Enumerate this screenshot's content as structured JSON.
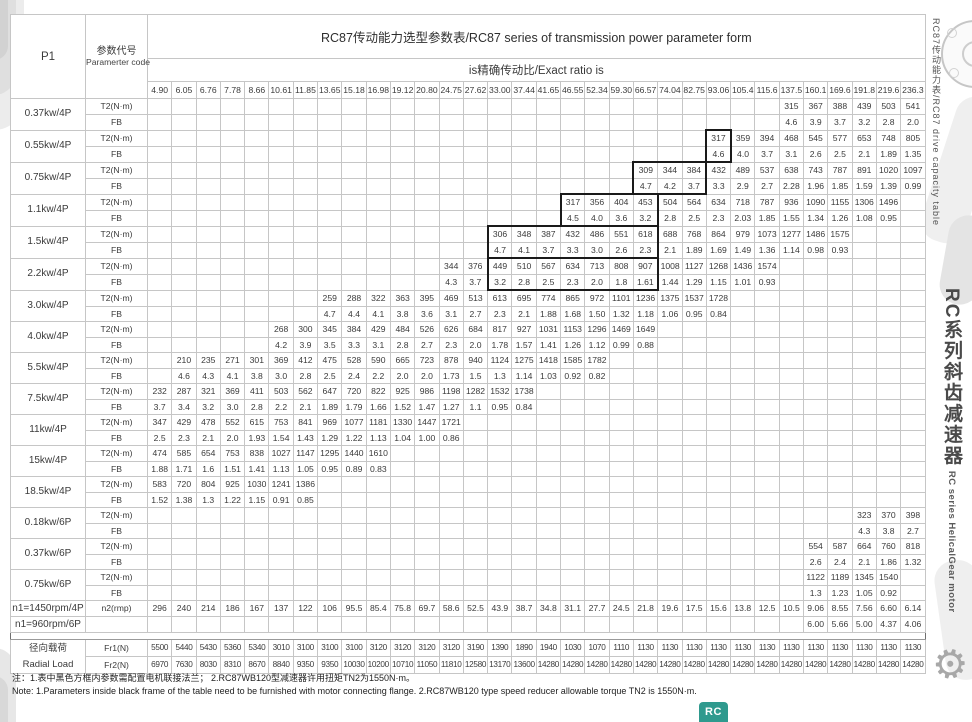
{
  "header": {
    "p1": "P1",
    "param_cn": "参数代号",
    "param_en": "Paramerter code",
    "title": "RC87传动能力选型参数表/RC87 series of transmission power parameter form",
    "subtitle": "is精确传动比/Exact ratio is"
  },
  "ratios": [
    "4.90",
    "6.05",
    "6.76",
    "7.78",
    "8.66",
    "10.61",
    "11.85",
    "13.65",
    "15.18",
    "16.98",
    "19.12",
    "20.80",
    "24.75",
    "27.62",
    "33.00",
    "37.44",
    "41.65",
    "46.55",
    "52.34",
    "59.30",
    "66.57",
    "74.04",
    "82.75",
    "93.06",
    "105.4",
    "115.6",
    "137.5",
    "160.1",
    "169.6",
    "191.8",
    "219.6",
    "236.3"
  ],
  "labels": {
    "t2": "T2(N·m)",
    "fb": "FB",
    "n2": "n2(rmp)",
    "fr1": "Fr1(N)",
    "fr2": "Fr2(N)"
  },
  "power_rows": [
    {
      "p1": "0.37kw/4P",
      "start": 26,
      "t2": [
        "315",
        "367",
        "388",
        "439",
        "503",
        "541"
      ],
      "fb": [
        "4.6",
        "3.9",
        "3.7",
        "3.2",
        "2.8",
        "2.0"
      ]
    },
    {
      "p1": "0.55kw/4P",
      "start": 23,
      "boxed": [
        23,
        23
      ],
      "t2": [
        "317",
        "359",
        "394",
        "468",
        "545",
        "577",
        "653",
        "748",
        "805"
      ],
      "fb": [
        "4.6",
        "4.0",
        "3.7",
        "3.1",
        "2.6",
        "2.5",
        "2.1",
        "1.89",
        "1.35"
      ]
    },
    {
      "p1": "0.75kw/4P",
      "start": 20,
      "boxed": [
        20,
        22
      ],
      "t2": [
        "309",
        "344",
        "384",
        "432",
        "489",
        "537",
        "638",
        "743",
        "787",
        "891",
        "1020",
        "1097"
      ],
      "fb": [
        "4.7",
        "4.2",
        "3.7",
        "3.3",
        "2.9",
        "2.7",
        "2.28",
        "1.96",
        "1.85",
        "1.59",
        "1.39",
        "0.99"
      ]
    },
    {
      "p1": "1.1kw/4P",
      "start": 17,
      "boxed": [
        17,
        20
      ],
      "t2": [
        "317",
        "356",
        "404",
        "453",
        "504",
        "564",
        "634",
        "718",
        "787",
        "936",
        "1090",
        "1155",
        "1306",
        "1496"
      ],
      "fb": [
        "4.5",
        "4.0",
        "3.6",
        "3.2",
        "2.8",
        "2.5",
        "2.3",
        "2.03",
        "1.85",
        "1.55",
        "1.34",
        "1.26",
        "1.08",
        "0.95"
      ]
    },
    {
      "p1": "1.5kw/4P",
      "start": 14,
      "boxed": [
        14,
        20
      ],
      "t2": [
        "306",
        "348",
        "387",
        "432",
        "486",
        "551",
        "618",
        "688",
        "768",
        "864",
        "979",
        "1073",
        "1277",
        "1486",
        "1575"
      ],
      "fb": [
        "4.7",
        "4.1",
        "3.7",
        "3.3",
        "3.0",
        "2.6",
        "2.3",
        "2.1",
        "1.89",
        "1.69",
        "1.49",
        "1.36",
        "1.14",
        "0.98",
        "0.93"
      ]
    },
    {
      "p1": "2.2kw/4P",
      "start": 12,
      "boxed": [
        14,
        20
      ],
      "t2": [
        "344",
        "376",
        "449",
        "510",
        "567",
        "634",
        "713",
        "808",
        "907",
        "1008",
        "1127",
        "1268",
        "1436",
        "1574"
      ],
      "fb": [
        "4.3",
        "3.7",
        "3.2",
        "2.8",
        "2.5",
        "2.3",
        "2.0",
        "1.8",
        "1.61",
        "1.44",
        "1.29",
        "1.15",
        "1.01",
        "0.93"
      ]
    },
    {
      "p1": "3.0kw/4P",
      "start": 7,
      "t2": [
        "259",
        "288",
        "322",
        "363",
        "395",
        "469",
        "513",
        "613",
        "695",
        "774",
        "865",
        "972",
        "1101",
        "1236",
        "1375",
        "1537",
        "1728"
      ],
      "fb": [
        "4.7",
        "4.4",
        "4.1",
        "3.8",
        "3.6",
        "3.1",
        "2.7",
        "2.3",
        "2.1",
        "1.88",
        "1.68",
        "1.50",
        "1.32",
        "1.18",
        "1.06",
        "0.95",
        "0.84"
      ]
    },
    {
      "p1": "4.0kw/4P",
      "start": 5,
      "t2": [
        "268",
        "300",
        "345",
        "384",
        "429",
        "484",
        "526",
        "626",
        "684",
        "817",
        "927",
        "1031",
        "1153",
        "1296",
        "1469",
        "1649"
      ],
      "fb": [
        "4.2",
        "3.9",
        "3.5",
        "3.3",
        "3.1",
        "2.8",
        "2.7",
        "2.3",
        "2.0",
        "1.78",
        "1.57",
        "1.41",
        "1.26",
        "1.12",
        "0.99",
        "0.88"
      ]
    },
    {
      "p1": "5.5kw/4P",
      "start": 1,
      "t2": [
        "210",
        "235",
        "271",
        "301",
        "369",
        "412",
        "475",
        "528",
        "590",
        "665",
        "723",
        "878",
        "940",
        "1124",
        "1275",
        "1418",
        "1585",
        "1782"
      ],
      "fb": [
        "4.6",
        "4.3",
        "4.1",
        "3.8",
        "3.0",
        "2.8",
        "2.5",
        "2.4",
        "2.2",
        "2.0",
        "2.0",
        "1.73",
        "1.5",
        "1.3",
        "1.14",
        "1.03",
        "0.92",
        "0.82"
      ]
    },
    {
      "p1": "7.5kw/4P",
      "start": 0,
      "t2": [
        "232",
        "287",
        "321",
        "369",
        "411",
        "503",
        "562",
        "647",
        "720",
        "822",
        "925",
        "986",
        "1198",
        "1282",
        "1532",
        "1738"
      ],
      "fb": [
        "3.7",
        "3.4",
        "3.2",
        "3.0",
        "2.8",
        "2.2",
        "2.1",
        "1.89",
        "1.79",
        "1.66",
        "1.52",
        "1.47",
        "1.27",
        "1.1",
        "0.95",
        "0.84"
      ]
    },
    {
      "p1": "11kw/4P",
      "start": 0,
      "t2": [
        "347",
        "429",
        "478",
        "552",
        "615",
        "753",
        "841",
        "969",
        "1077",
        "1181",
        "1330",
        "1447",
        "1721"
      ],
      "fb": [
        "2.5",
        "2.3",
        "2.1",
        "2.0",
        "1.93",
        "1.54",
        "1.43",
        "1.29",
        "1.22",
        "1.13",
        "1.04",
        "1.00",
        "0.86"
      ]
    },
    {
      "p1": "15kw/4P",
      "start": 0,
      "t2": [
        "474",
        "585",
        "654",
        "753",
        "838",
        "1027",
        "1147",
        "1295",
        "1440",
        "1610"
      ],
      "fb": [
        "1.88",
        "1.71",
        "1.6",
        "1.51",
        "1.41",
        "1.13",
        "1.05",
        "0.95",
        "0.89",
        "0.83"
      ]
    },
    {
      "p1": "18.5kw/4P",
      "start": 0,
      "t2": [
        "583",
        "720",
        "804",
        "925",
        "1030",
        "1241",
        "1386"
      ],
      "fb": [
        "1.52",
        "1.38",
        "1.3",
        "1.22",
        "1.15",
        "0.91",
        "0.85"
      ]
    },
    {
      "p1": "0.18kw/6P",
      "start": 29,
      "t2": [
        "323",
        "370",
        "398"
      ],
      "fb": [
        "4.3",
        "3.8",
        "2.7"
      ]
    },
    {
      "p1": "0.37kw/6P",
      "start": 27,
      "t2": [
        "554",
        "587",
        "664",
        "760",
        "818"
      ],
      "fb": [
        "2.6",
        "2.4",
        "2.1",
        "1.86",
        "1.32"
      ]
    },
    {
      "p1": "0.75kw/6P",
      "start": 27,
      "t2": [
        "1122",
        "1189",
        "1345",
        "1540"
      ],
      "fb": [
        "1.3",
        "1.23",
        "1.05",
        "0.92"
      ]
    }
  ],
  "speed_rows": [
    {
      "p1": "n1=1450rpm/4P",
      "param": "n2(rmp)",
      "start": 0,
      "values": [
        "296",
        "240",
        "214",
        "186",
        "167",
        "137",
        "122",
        "106",
        "95.5",
        "85.4",
        "75.8",
        "69.7",
        "58.6",
        "52.5",
        "43.9",
        "38.7",
        "34.8",
        "31.1",
        "27.7",
        "24.5",
        "21.8",
        "19.6",
        "17.5",
        "15.6",
        "13.8",
        "12.5",
        "10.5",
        "9.06",
        "8.55",
        "7.56",
        "6.60",
        "6.14"
      ]
    },
    {
      "p1": "n1=960rpm/6P",
      "param": "",
      "start": 27,
      "values": [
        "6.00",
        "5.66",
        "5.00",
        "4.37",
        "4.06"
      ]
    }
  ],
  "radial": {
    "label_cn": "径向载荷",
    "label_en": "Radial Load",
    "rows": [
      {
        "param": "Fr1(N)",
        "values": [
          "5500",
          "5440",
          "5430",
          "5360",
          "5340",
          "3010",
          "3100",
          "3100",
          "3100",
          "3120",
          "3120",
          "3120",
          "3120",
          "3190",
          "1390",
          "1890",
          "1940",
          "1030",
          "1070",
          "1110",
          "1130",
          "1130",
          "1130",
          "1130",
          "1130",
          "1130",
          "1130",
          "1130",
          "1130",
          "1130",
          "1130",
          "1130"
        ]
      },
      {
        "param": "Fr2(N)",
        "values": [
          "6970",
          "7630",
          "8030",
          "8310",
          "8670",
          "8840",
          "9350",
          "9350",
          "10030",
          "10200",
          "10710",
          "11050",
          "11810",
          "12580",
          "13170",
          "13600",
          "14280",
          "14280",
          "14280",
          "14280",
          "14280",
          "14280",
          "14280",
          "14280",
          "14280",
          "14280",
          "14280",
          "14280",
          "14280",
          "14280",
          "14280",
          "14280"
        ]
      }
    ]
  },
  "notes": {
    "cn": "注：1.表中黑色方框内参数需配置电机联接法兰；    2.RC87WB120型减速器许用扭矩TN2为1550N·m。",
    "en": "Note: 1.Parameters inside black frame of the table need to be furnished with motor connecting flange.    2.RC87WB120 type speed reducer allowable torque TN2 is 1550N·m."
  },
  "side": {
    "top_label": "RC87传动能力表/RC87 drive capacity table",
    "series_cn": "RC系列斜齿减速器",
    "series_en": "RC series HelicalGear motor",
    "badge": "RC"
  },
  "colors": {
    "badge_teal": "#2f9a8e",
    "black_frame": "#1a1a1a",
    "grid_line": "#c6c6c6"
  }
}
